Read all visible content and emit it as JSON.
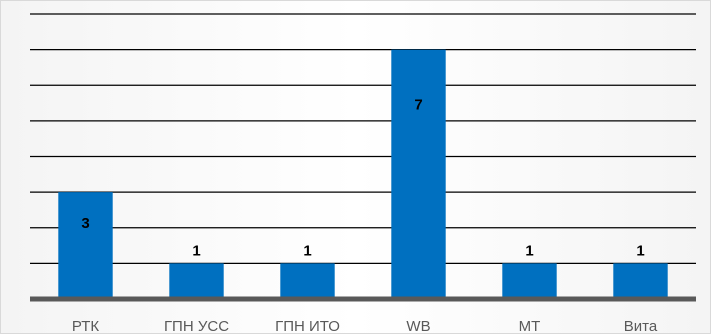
{
  "chart_data": {
    "type": "bar",
    "categories": [
      "РТК",
      "ГПН УСС",
      "ГПН ИТО",
      "WB",
      "МТ",
      "Вита"
    ],
    "values": [
      3,
      1,
      1,
      7,
      1,
      1
    ],
    "data_labels": [
      "3",
      "1",
      "1",
      "7",
      "1",
      "1"
    ],
    "title": "",
    "xlabel": "",
    "ylabel": "",
    "ylim": [
      0,
      8
    ],
    "grid": true,
    "legend": "none",
    "bar_color": "#0070C0",
    "grid_color": "#000000"
  }
}
